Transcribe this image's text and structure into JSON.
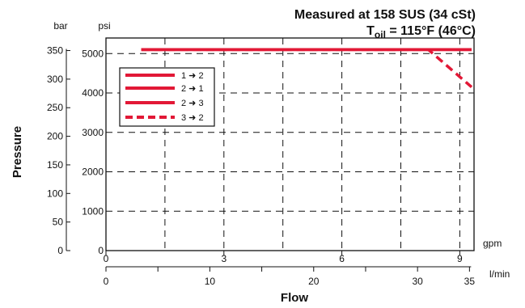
{
  "chart_data": {
    "type": "line",
    "title_line1": "Measured at 158 SUS  (34 cSt)",
    "title_line2": {
      "prefix": "T",
      "sub": "oil",
      "rest": " = 115°F  (46°C)"
    },
    "ylabel": "Pressure",
    "xlabel": "Flow",
    "y_axis_psi": {
      "unit": "psi",
      "range": [
        0,
        5300
      ],
      "ticks": [
        0,
        1000,
        2000,
        3000,
        4000,
        5000
      ],
      "tick_labels": [
        "0",
        "1000",
        "2000",
        "3000",
        "4000",
        "5000"
      ]
    },
    "y_axis_bar": {
      "unit": "bar",
      "ticks": [
        0,
        50,
        100,
        150,
        200,
        250,
        300,
        350
      ],
      "tick_labels": [
        "0",
        "50",
        "100",
        "150",
        "200",
        "250",
        "300",
        "350"
      ]
    },
    "x_axis_gpm": {
      "unit": "gpm",
      "range": [
        0,
        9.5
      ],
      "ticks": [
        0,
        3,
        6,
        9
      ],
      "tick_labels": [
        "0",
        "3",
        "6",
        "9"
      ]
    },
    "x_axis_lpm": {
      "unit": "l/min",
      "ticks": [
        0,
        10,
        20,
        30,
        35
      ],
      "tick_labels": [
        "0",
        "10",
        "20",
        "30",
        "35"
      ]
    },
    "grid": true,
    "legend_position": "top-left",
    "series": [
      {
        "name": "1 ➜ 2",
        "style": "solid",
        "color": "#e21836",
        "x": [
          0.9,
          9.3
        ],
        "y": [
          5100,
          5100
        ]
      },
      {
        "name": "2 ➜ 1",
        "style": "solid",
        "color": "#e21836",
        "x": [
          0.9,
          9.3
        ],
        "y": [
          5100,
          5100
        ]
      },
      {
        "name": "2 ➜ 3",
        "style": "solid",
        "color": "#e21836",
        "x": [
          0.9,
          9.3
        ],
        "y": [
          5100,
          5100
        ]
      },
      {
        "name": "3 ➜ 2",
        "style": "dashed",
        "color": "#e21836",
        "x": [
          0.9,
          8.2,
          9.3
        ],
        "y": [
          5100,
          5100,
          4150
        ]
      }
    ]
  }
}
